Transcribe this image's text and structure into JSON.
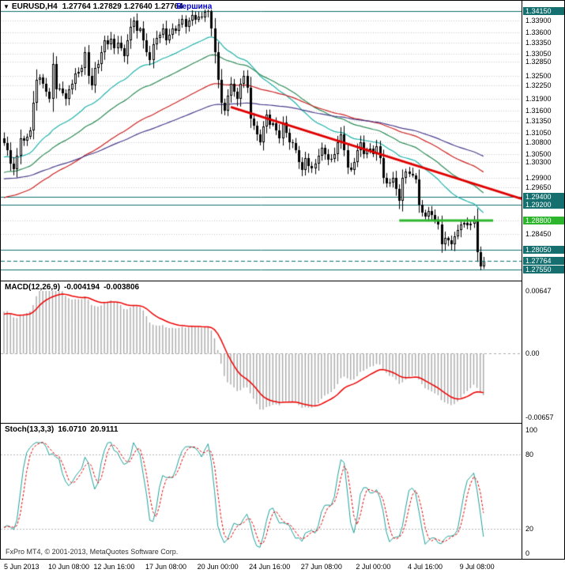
{
  "header": {
    "dropdown_icon": "▼",
    "symbol_title": "EURUSD,H4",
    "ohlc": "1.27764 1.27829 1.27640 1.27764",
    "annotation": "Вершина"
  },
  "watermark": "FxPro MT4, © 2001-2013, MetaQuotes Software Corp.",
  "colors": {
    "grid": "#C6C6C6",
    "level": "#0E6F6F",
    "green_line": "#2DB52D",
    "trend": "#E00000",
    "ma_teal": "#20B2AA",
    "ma_green": "#2E8B57",
    "ma_red": "#CC2222",
    "ma_blue": "#483D8B",
    "macd_hist": "#A8A8A8",
    "macd_signal": "#EE0000",
    "macd_zero": "#AAAAAA",
    "stoch_main": "#1FA09A",
    "stoch_signal": "#E00000",
    "stoch_levels": "#B4B4B4"
  },
  "chart_data": {
    "type": "candlestick",
    "symbol": "EURUSD",
    "timeframe": "H4",
    "current_bar": {
      "open": "1.27764",
      "high": "1.27829",
      "low": "1.27640",
      "close": "1.27764"
    },
    "prev_close": 1.309,
    "closes": [
      1.3078,
      1.306,
      1.3025,
      1.3012,
      1.3045,
      1.309,
      1.3085,
      1.3095,
      1.311,
      1.318,
      1.324,
      1.3245,
      1.323,
      1.321,
      1.319,
      1.328,
      1.3215,
      1.3218,
      1.3205,
      1.319,
      1.3215,
      1.323,
      1.3255,
      1.326,
      1.327,
      1.331,
      1.325,
      1.3225,
      1.327,
      1.328,
      1.331,
      1.334,
      1.333,
      1.3345,
      1.332,
      1.3335,
      1.332,
      1.33,
      1.334,
      1.3375,
      1.339,
      1.3365,
      1.337,
      1.334,
      1.331,
      1.329,
      1.333,
      1.3347,
      1.3355,
      1.337,
      1.334,
      1.3355,
      1.337,
      1.3365,
      1.338,
      1.3395,
      1.3375,
      1.339,
      1.3405,
      1.3392,
      1.34,
      1.3398,
      1.3412,
      1.3415,
      1.337,
      1.331,
      1.324,
      1.318,
      1.316,
      1.32,
      1.323,
      1.321,
      1.319,
      1.323,
      1.325,
      1.322,
      1.314,
      1.3122,
      1.31,
      1.308,
      1.312,
      1.315,
      1.3125,
      1.3128,
      1.311,
      1.309,
      1.313,
      1.3105,
      1.308,
      1.3078,
      1.306,
      1.303,
      1.301,
      1.304,
      1.302,
      1.3013,
      1.3025,
      1.3045,
      1.3065,
      1.305,
      1.3035,
      1.3038,
      1.305,
      1.308,
      1.31,
      1.306,
      1.3015,
      1.301,
      1.303,
      1.306,
      1.308,
      1.305,
      1.306,
      1.3064,
      1.305,
      1.307,
      1.304,
      1.299,
      1.2975,
      1.2977,
      1.299,
      1.296,
      1.293,
      1.299,
      1.3005,
      1.3,
      1.2995,
      1.2985,
      1.292,
      1.29,
      1.289,
      1.2905,
      1.2895,
      1.288,
      1.287,
      1.282,
      1.2835,
      1.283,
      1.282,
      1.284,
      1.2855,
      1.287,
      1.2875,
      1.2868,
      1.2872,
      1.288,
      1.28,
      1.2764,
      1.27764
    ],
    "price_axis": {
      "ticks": [
        {
          "label": "1.34150",
          "value": 1.3415,
          "style": "level"
        },
        {
          "label": "1.33900",
          "value": 1.339
        },
        {
          "label": "1.33600",
          "value": 1.336
        },
        {
          "label": "1.33350",
          "value": 1.3335
        },
        {
          "label": "1.33050",
          "value": 1.3305
        },
        {
          "label": "1.32850",
          "value": 1.3285
        },
        {
          "label": "1.32500",
          "value": 1.325
        },
        {
          "label": "1.32250",
          "value": 1.3225
        },
        {
          "label": "1.31900",
          "value": 1.319
        },
        {
          "label": "1.31600",
          "value": 1.316
        },
        {
          "label": "1.31350",
          "value": 1.3135
        },
        {
          "label": "1.31050",
          "value": 1.3105
        },
        {
          "label": "1.30800",
          "value": 1.308
        },
        {
          "label": "1.30500",
          "value": 1.305
        },
        {
          "label": "1.30300",
          "value": 1.303
        },
        {
          "label": "1.29900",
          "value": 1.299
        },
        {
          "label": "1.29650",
          "value": 1.2965
        },
        {
          "label": "1.29400",
          "value": 1.294,
          "style": "level"
        },
        {
          "label": "1.29200",
          "value": 1.292,
          "style": "level"
        },
        {
          "label": "1.28800",
          "value": 1.288,
          "style": "green"
        },
        {
          "label": "1.28450",
          "value": 1.2845
        },
        {
          "label": "1.28050",
          "value": 1.2805,
          "style": "level"
        },
        {
          "label": "1.27764",
          "value": 1.27764,
          "style": "current"
        },
        {
          "label": "1.27550",
          "value": 1.2755,
          "style": "level"
        }
      ]
    },
    "time_labels": [
      {
        "label": "5 Jun 2013",
        "bar": 0
      },
      {
        "label": "10 Jun 08:00",
        "bar": 20
      },
      {
        "label": "12 Jun 16:00",
        "bar": 34
      },
      {
        "label": "17 Jun 08:00",
        "bar": 50
      },
      {
        "label": "20 Jun 00:00",
        "bar": 66
      },
      {
        "label": "24 Jun 16:00",
        "bar": 82
      },
      {
        "label": "27 Jun 08:00",
        "bar": 98
      },
      {
        "label": "2 Jul 00:00",
        "bar": 114
      },
      {
        "label": "4 Jul 16:00",
        "bar": 130
      },
      {
        "label": "9 Jul 08:00",
        "bar": 146
      }
    ],
    "moving_averages": [
      {
        "period": 34,
        "seed": 1.304,
        "color_key": "ma_teal"
      },
      {
        "period": 55,
        "seed": 1.3,
        "color_key": "ma_green"
      },
      {
        "period": 89,
        "seed": 1.2935,
        "color_key": "ma_red"
      },
      {
        "period": 144,
        "seed": 1.2985,
        "color_key": "ma_blue"
      }
    ],
    "trendline": {
      "bar1": 70,
      "price1": 1.317,
      "bar2": 160,
      "price2": 1.2935
    },
    "green_segment": {
      "price": 1.288,
      "bar_start": 122,
      "bar_end": 151
    },
    "annotation": {
      "bar": 53
    },
    "macd": {
      "name": "MACD(12,26,9)",
      "value_main": "-0.004194",
      "value_signal": "-0.003806",
      "fast": 12,
      "slow": 26,
      "signal": 9,
      "seed_fast": 1.3,
      "seed_slow": 1.296,
      "seed_signal": 0.004,
      "axis_max": 0.00647,
      "axis_min": -0.00657,
      "axis_labels": [
        {
          "label": "0.00647",
          "value": 0.00647
        },
        {
          "label": "0.00",
          "value": 0
        },
        {
          "label": "-0.00657",
          "value": -0.00657
        }
      ]
    },
    "stoch": {
      "name": "Stoch(13,3,3)",
      "value_k": "16.0710",
      "value_d": "20.9111",
      "k_period": 13,
      "slowing": 3,
      "d_period": 3,
      "levels": [
        80,
        20
      ],
      "axis_labels": [
        {
          "label": "100",
          "value": 100
        },
        {
          "label": "80",
          "value": 80
        },
        {
          "label": "20",
          "value": 20
        },
        {
          "label": "0",
          "value": 0
        }
      ]
    }
  }
}
